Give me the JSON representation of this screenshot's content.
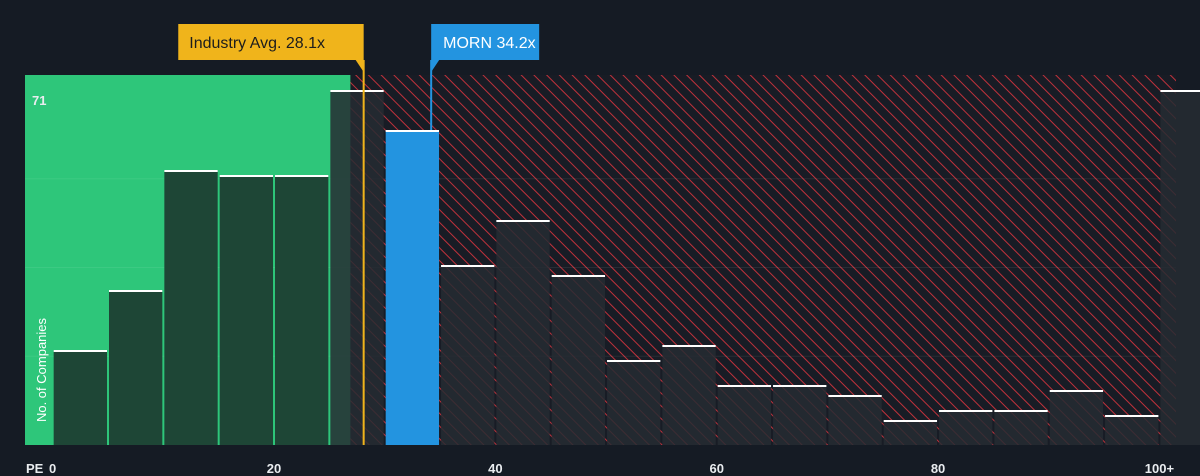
{
  "chart_data": {
    "type": "bar",
    "xlabel": "PE",
    "ylabel": "No. of Companies",
    "x_ticks": [
      {
        "value": 0,
        "label": "0"
      },
      {
        "value": 20,
        "label": "20"
      },
      {
        "value": 40,
        "label": "40"
      },
      {
        "value": 60,
        "label": "60"
      },
      {
        "value": 80,
        "label": "80"
      },
      {
        "value": 100,
        "label": "100+"
      }
    ],
    "y_max_label": "71",
    "ylim": [
      0,
      71
    ],
    "xlim": [
      -2.5,
      101.5
    ],
    "bin_width": 5,
    "bins": [
      {
        "start": 0,
        "value": 19
      },
      {
        "start": 5,
        "value": 31
      },
      {
        "start": 10,
        "value": 55
      },
      {
        "start": 15,
        "value": 54
      },
      {
        "start": 20,
        "value": 54
      },
      {
        "start": 25,
        "value": 71
      },
      {
        "start": 30,
        "value": 63
      },
      {
        "start": 35,
        "value": 36
      },
      {
        "start": 40,
        "value": 45
      },
      {
        "start": 45,
        "value": 34
      },
      {
        "start": 50,
        "value": 17
      },
      {
        "start": 55,
        "value": 20
      },
      {
        "start": 60,
        "value": 12
      },
      {
        "start": 65,
        "value": 12
      },
      {
        "start": 70,
        "value": 10
      },
      {
        "start": 75,
        "value": 5
      },
      {
        "start": 80,
        "value": 7
      },
      {
        "start": 85,
        "value": 7
      },
      {
        "start": 90,
        "value": 11
      },
      {
        "start": 95,
        "value": 6
      },
      {
        "start": 100,
        "value": 71
      }
    ],
    "highlight_bin_start": 30,
    "fair_zone_end": 26.9,
    "annotations": {
      "industry": {
        "label": "Industry Avg. 28.1x",
        "value": 28.1
      },
      "company": {
        "label": "MORN 34.2x",
        "value": 34.2
      }
    },
    "colors": {
      "background": "#151b24",
      "fair_zone": "#2ec67a",
      "bar_dark": "#1e4636",
      "bar_dark_over": "#262b33",
      "bar_top": "#ffffff",
      "hatch": "#c0313b",
      "company_bar": "#2394e0",
      "industry_badge": "#f0b41b",
      "company_badge": "#2394e0"
    }
  }
}
